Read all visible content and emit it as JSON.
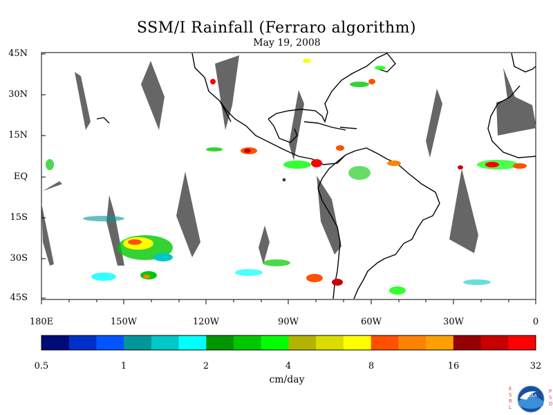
{
  "header": {
    "title": "SSM/I Rainfall (Ferraro algorithm)",
    "date": "May 19, 2008"
  },
  "map": {
    "lat_labels": [
      "45N",
      "30N",
      "15N",
      "EQ",
      "15S",
      "30S",
      "45S"
    ],
    "lon_labels": [
      "180E",
      "150W",
      "120W",
      "90W",
      "60W",
      "30W",
      "0"
    ],
    "land_outline_color": "#000000",
    "missing_data_color": "#666666"
  },
  "colorbar": {
    "tick_labels": [
      "0.5",
      "1",
      "2",
      "4",
      "8",
      "16",
      "32"
    ],
    "units": "cm/day",
    "colors": [
      "#000a78",
      "#0030c8",
      "#0055ff",
      "#00969a",
      "#00c8c8",
      "#00ffff",
      "#009600",
      "#00c800",
      "#00ff00",
      "#b4b400",
      "#dcdc00",
      "#ffff00",
      "#ff5000",
      "#ff8200",
      "#ffa000",
      "#960000",
      "#c80000",
      "#ff0000"
    ]
  },
  "logo": {
    "left_letters": "ESRL",
    "right_letters": "PSD",
    "badge_text": "NOAA"
  }
}
